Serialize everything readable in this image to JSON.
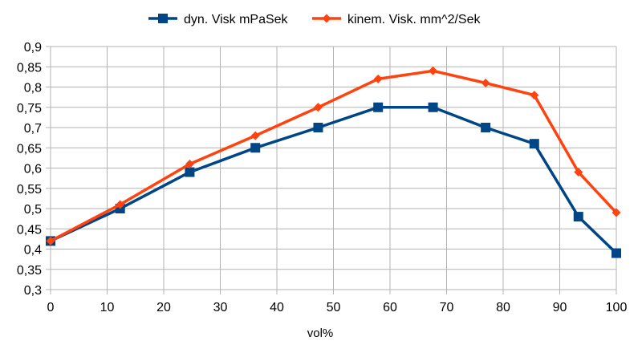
{
  "chart_data": {
    "type": "line",
    "title": "",
    "xlabel": "vol%",
    "ylabel": "",
    "xlim": [
      0,
      100
    ],
    "ylim": [
      0.3,
      0.9
    ],
    "x_ticks": [
      "0",
      "10",
      "20",
      "30",
      "40",
      "50",
      "60",
      "70",
      "80",
      "90",
      "100"
    ],
    "y_ticks": [
      "0,3",
      "0,35",
      "0,4",
      "0,45",
      "0,5",
      "0,55",
      "0,6",
      "0,65",
      "0,7",
      "0,75",
      "0,8",
      "0,85",
      "0,9"
    ],
    "grid": true,
    "legend_position": "top",
    "series": [
      {
        "name": "dyn. Visk mPaSek",
        "color": "#004586",
        "marker": "square",
        "points": [
          {
            "x": 0,
            "y": 0.42
          },
          {
            "x": 12.3,
            "y": 0.5
          },
          {
            "x": 24.6,
            "y": 0.59
          },
          {
            "x": 36.2,
            "y": 0.65
          },
          {
            "x": 47.3,
            "y": 0.7
          },
          {
            "x": 57.9,
            "y": 0.75
          },
          {
            "x": 67.6,
            "y": 0.75
          },
          {
            "x": 76.9,
            "y": 0.7
          },
          {
            "x": 85.5,
            "y": 0.66
          },
          {
            "x": 93.3,
            "y": 0.48
          },
          {
            "x": 100,
            "y": 0.39
          }
        ]
      },
      {
        "name": "kinem. Visk. mm^2/Sek",
        "color": "#ff420e",
        "marker": "diamond",
        "points": [
          {
            "x": 0,
            "y": 0.42
          },
          {
            "x": 12.3,
            "y": 0.51
          },
          {
            "x": 24.6,
            "y": 0.61
          },
          {
            "x": 36.2,
            "y": 0.68
          },
          {
            "x": 47.3,
            "y": 0.75
          },
          {
            "x": 57.9,
            "y": 0.82
          },
          {
            "x": 67.6,
            "y": 0.84
          },
          {
            "x": 76.9,
            "y": 0.81
          },
          {
            "x": 85.5,
            "y": 0.78
          },
          {
            "x": 93.3,
            "y": 0.59
          },
          {
            "x": 100,
            "y": 0.49
          }
        ]
      }
    ]
  }
}
